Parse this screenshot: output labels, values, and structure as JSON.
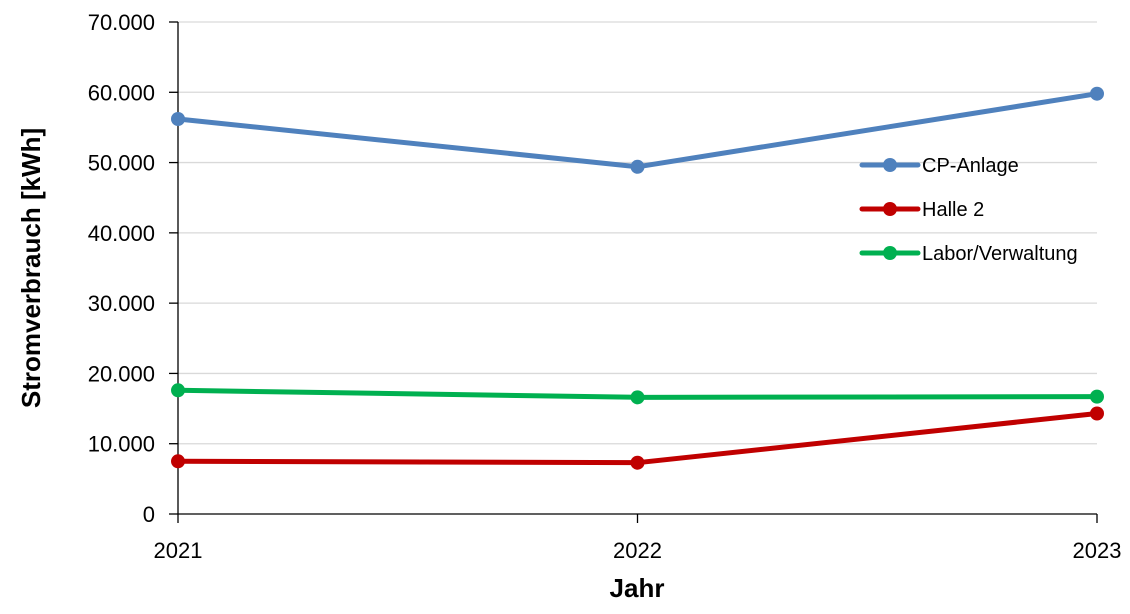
{
  "chart_data": {
    "type": "line",
    "x": [
      "2021",
      "2022",
      "2023"
    ],
    "xlabel": "Jahr",
    "ylabel": "Stromverbrauch [kWh]",
    "ylim": [
      0,
      70000
    ],
    "yticks": [
      0,
      10000,
      20000,
      30000,
      40000,
      50000,
      60000,
      70000
    ],
    "ytick_labels": [
      "0",
      "10.000",
      "20.000",
      "30.000",
      "40.000",
      "50.000",
      "60.000",
      "70.000"
    ],
    "grid": "horizontal",
    "legend_position": "right",
    "series": [
      {
        "name": "CP-Anlage",
        "color": "#4f81bd",
        "values": [
          56200,
          49400,
          59800
        ]
      },
      {
        "name": "Halle 2",
        "color": "#c00000",
        "values": [
          7500,
          7300,
          14300
        ]
      },
      {
        "name": "Labor/Verwaltung",
        "color": "#00b050",
        "values": [
          17600,
          16600,
          16700
        ]
      }
    ]
  }
}
